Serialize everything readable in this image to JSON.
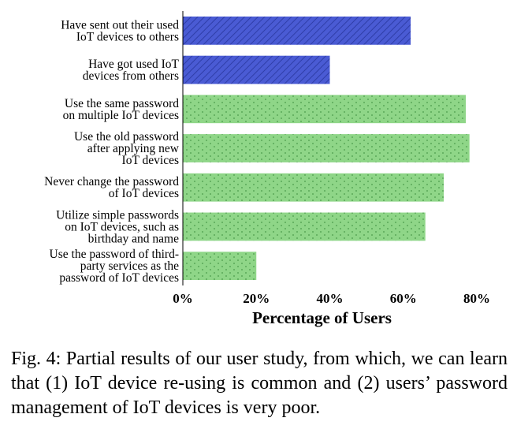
{
  "chart_data": {
    "type": "bar",
    "orientation": "horizontal",
    "categories": [
      [
        "Have sent out their used",
        "IoT devices to others"
      ],
      [
        "Have got used IoT",
        "devices from others"
      ],
      [
        "Use the same password",
        "on multiple IoT devices"
      ],
      [
        "Use the old password",
        "after applying new",
        "IoT devices"
      ],
      [
        "Never change the password",
        "of IoT devices"
      ],
      [
        "Utilize simple passwords",
        "on IoT devices, such as",
        "birthday and name"
      ],
      [
        "Use the password of third-",
        "party services as the",
        "password of IoT devices"
      ]
    ],
    "values": [
      62,
      40,
      77,
      78,
      71,
      66,
      20
    ],
    "group": [
      "reuse",
      "reuse",
      "password",
      "password",
      "password",
      "password",
      "password"
    ],
    "colors": {
      "reuse": "#4a5bd4",
      "password": "#8fd688"
    },
    "xlabel": "Percentage of Users",
    "xlim": [
      0,
      80
    ],
    "xticks": [
      0,
      20,
      40,
      60,
      80
    ],
    "tick_suffix": "%",
    "grid": false,
    "legend": "none"
  },
  "caption": "Fig. 4: Partial results of our user study, from which, we can learn that (1) IoT device re-using is common and (2) users’ password management of IoT devices is very poor."
}
